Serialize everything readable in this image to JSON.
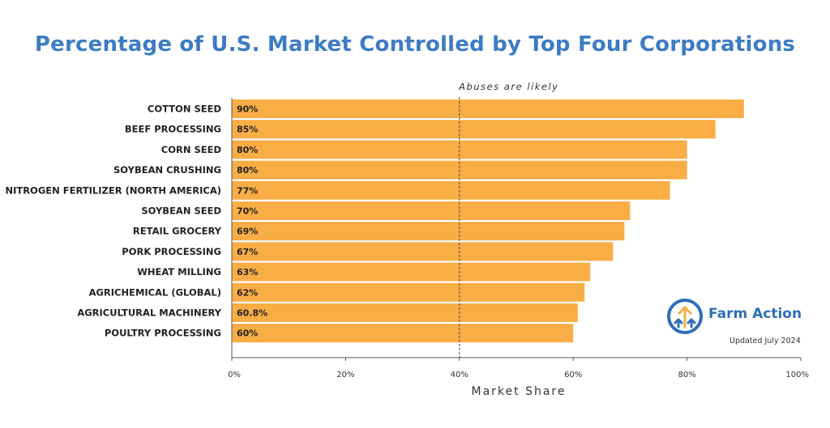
{
  "chart_data": {
    "type": "bar",
    "orientation": "horizontal",
    "title": "Percentage of U.S. Market Controlled by Top Four Corporations",
    "categories": [
      "COTTON SEED",
      "BEEF PROCESSING",
      "CORN SEED",
      "SOYBEAN CRUSHING",
      "NITROGEN FERTILIZER (NORTH AMERICA)",
      "SOYBEAN SEED",
      "RETAIL GROCERY",
      "PORK PROCESSING",
      "WHEAT MILLING",
      "AGRICHEMICAL (GLOBAL)",
      "AGRICULTURAL MACHINERY",
      "POULTRY PROCESSING"
    ],
    "values": [
      90,
      85,
      80,
      80,
      77,
      70,
      69,
      67,
      63,
      62,
      60.8,
      60
    ],
    "value_labels": [
      "90%",
      "85%",
      "80%",
      "80%",
      "77%",
      "70%",
      "69%",
      "67%",
      "63%",
      "62%",
      "60.8%",
      "60%"
    ],
    "xlabel": "Market Share",
    "ylabel": "",
    "xlim": [
      0,
      100
    ],
    "xticks": [
      0,
      20,
      40,
      60,
      80,
      100
    ],
    "xtick_labels": [
      "0%",
      "20%",
      "40%",
      "60%",
      "80%",
      "100%"
    ],
    "reference_line": {
      "value": 40,
      "label": "Abuses are likely"
    },
    "bar_color": "#f9ad45",
    "grid": false
  },
  "brand": {
    "name": "Farm Action",
    "updated": "Updated July 2024",
    "color": "#2e6fb6"
  }
}
